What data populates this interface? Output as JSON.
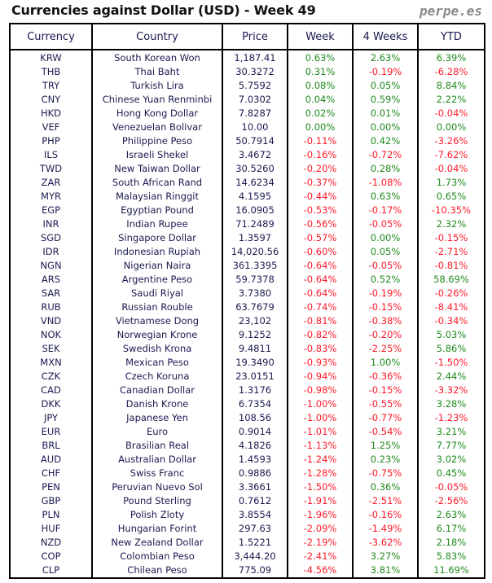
{
  "title": "Currencies against Dollar (USD) - Week 49",
  "brand": "perpe.es",
  "colors": {
    "positive": "#208a20",
    "negative": "#ff1a2a",
    "text": "#1a1a50"
  },
  "table": {
    "headers": [
      "Currency",
      "Country",
      "Price",
      "Week",
      "4 Weeks",
      "YTD"
    ],
    "rows": [
      [
        "KRW",
        "South Korean Won",
        "1,187.41",
        "0.63%",
        "2.63%",
        "6.39%"
      ],
      [
        "THB",
        "Thai Baht",
        "30.3272",
        "0.31%",
        "-0.19%",
        "-6.28%"
      ],
      [
        "TRY",
        "Turkish Lira",
        "5.7592",
        "0.08%",
        "0.05%",
        "8.84%"
      ],
      [
        "CNY",
        "Chinese Yuan Renminbi",
        "7.0302",
        "0.04%",
        "0.59%",
        "2.22%"
      ],
      [
        "HKD",
        "Hong Kong Dollar",
        "7.8287",
        "0.02%",
        "0.01%",
        "-0.04%"
      ],
      [
        "VEF",
        "Venezuelan Bolivar",
        "10.00",
        "0.00%",
        "0.00%",
        "0.00%"
      ],
      [
        "PHP",
        "Philippine Peso",
        "50.7914",
        "-0.11%",
        "0.42%",
        "-3.26%"
      ],
      [
        "ILS",
        "Israeli Shekel",
        "3.4672",
        "-0.16%",
        "-0.72%",
        "-7.62%"
      ],
      [
        "TWD",
        "New Taiwan Dollar",
        "30.5260",
        "-0.20%",
        "0.28%",
        "-0.04%"
      ],
      [
        "ZAR",
        "South African Rand",
        "14.6234",
        "-0.37%",
        "-1.08%",
        "1.73%"
      ],
      [
        "MYR",
        "Malaysian Ringgit",
        "4.1595",
        "-0.44%",
        "0.63%",
        "0.65%"
      ],
      [
        "EGP",
        "Egyptian Pound",
        "16.0905",
        "-0.53%",
        "-0.17%",
        "-10.35%"
      ],
      [
        "INR",
        "Indian Rupee",
        "71.2489",
        "-0.56%",
        "-0.05%",
        "2.32%"
      ],
      [
        "SGD",
        "Singapore Dollar",
        "1.3597",
        "-0.57%",
        "0.00%",
        "-0.15%"
      ],
      [
        "IDR",
        "Indonesian Rupiah",
        "14,020.56",
        "-0.60%",
        "0.05%",
        "-2.71%"
      ],
      [
        "NGN",
        "Nigerian Naira",
        "361.3395",
        "-0.64%",
        "-0.05%",
        "-0.81%"
      ],
      [
        "ARS",
        "Argentine Peso",
        "59.7378",
        "-0.64%",
        "0.52%",
        "58.69%"
      ],
      [
        "SAR",
        "Saudi Riyal",
        "3.7380",
        "-0.64%",
        "-0.19%",
        "-0.26%"
      ],
      [
        "RUB",
        "Russian Rouble",
        "63.7679",
        "-0.74%",
        "-0.15%",
        "-8.41%"
      ],
      [
        "VND",
        "Vietnamese Dong",
        "23,102",
        "-0.81%",
        "-0.38%",
        "-0.34%"
      ],
      [
        "NOK",
        "Norwegian Krone",
        "9.1252",
        "-0.82%",
        "-0.20%",
        "5.03%"
      ],
      [
        "SEK",
        "Swedish Krona",
        "9.4811",
        "-0.83%",
        "-2.25%",
        "5.86%"
      ],
      [
        "MXN",
        "Mexican Peso",
        "19.3490",
        "-0.93%",
        "1.00%",
        "-1.50%"
      ],
      [
        "CZK",
        "Czech Koruna",
        "23.0151",
        "-0.94%",
        "-0.36%",
        "2.44%"
      ],
      [
        "CAD",
        "Canadian Dollar",
        "1.3176",
        "-0.98%",
        "-0.15%",
        "-3.32%"
      ],
      [
        "DKK",
        "Danish Krone",
        "6.7354",
        "-1.00%",
        "-0.55%",
        "3.28%"
      ],
      [
        "JPY",
        "Japanese Yen",
        "108.56",
        "-1.00%",
        "-0.77%",
        "-1.23%"
      ],
      [
        "EUR",
        "Euro",
        "0.9014",
        "-1.01%",
        "-0.54%",
        "3.21%"
      ],
      [
        "BRL",
        "Brasilian Real",
        "4.1826",
        "-1.13%",
        "1.25%",
        "7.77%"
      ],
      [
        "AUD",
        "Australian Dollar",
        "1.4593",
        "-1.24%",
        "0.23%",
        "3.02%"
      ],
      [
        "CHF",
        "Swiss Franc",
        "0.9886",
        "-1.28%",
        "-0.75%",
        "0.45%"
      ],
      [
        "PEN",
        "Peruvian Nuevo Sol",
        "3.3661",
        "-1.50%",
        "0.36%",
        "-0.05%"
      ],
      [
        "GBP",
        "Pound Sterling",
        "0.7612",
        "-1.91%",
        "-2.51%",
        "-2.56%"
      ],
      [
        "PLN",
        "Polish Zloty",
        "3.8554",
        "-1.96%",
        "-0.16%",
        "2.63%"
      ],
      [
        "HUF",
        "Hungarian Forint",
        "297.63",
        "-2.09%",
        "-1.49%",
        "6.17%"
      ],
      [
        "NZD",
        "New Zealand Dollar",
        "1.5221",
        "-2.19%",
        "-3.62%",
        "2.18%"
      ],
      [
        "COP",
        "Colombian Peso",
        "3,444.20",
        "-2.41%",
        "3.27%",
        "5.83%"
      ],
      [
        "CLP",
        "Chilean Peso",
        "775.09",
        "-4.56%",
        "3.81%",
        "11.69%"
      ]
    ]
  }
}
